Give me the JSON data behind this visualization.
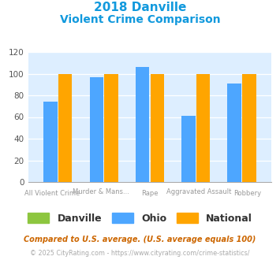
{
  "title_line1": "2018 Danville",
  "title_line2": "Violent Crime Comparison",
  "cat_line1": [
    "",
    "Murder & Mans...",
    "",
    "Aggravated Assault",
    ""
  ],
  "cat_line2": [
    "All Violent Crime",
    "",
    "Rape",
    "",
    "Robbery"
  ],
  "ohio_values": [
    74,
    97,
    106,
    61,
    91
  ],
  "national_values": [
    100,
    100,
    100,
    100,
    100
  ],
  "danville_color": "#8dc63f",
  "ohio_color": "#4da6ff",
  "national_color": "#ffa500",
  "title_color": "#1199dd",
  "ylim": [
    0,
    120
  ],
  "yticks": [
    0,
    20,
    40,
    60,
    80,
    100,
    120
  ],
  "plot_bg": "#ddeeff",
  "legend_labels": [
    "Danville",
    "Ohio",
    "National"
  ],
  "footnote1": "Compared to U.S. average. (U.S. average equals 100)",
  "footnote2": "© 2025 CityRating.com - https://www.cityrating.com/crime-statistics/",
  "footnote1_color": "#cc6600",
  "footnote2_color": "#aaaaaa",
  "footnote2_link_color": "#4499cc"
}
